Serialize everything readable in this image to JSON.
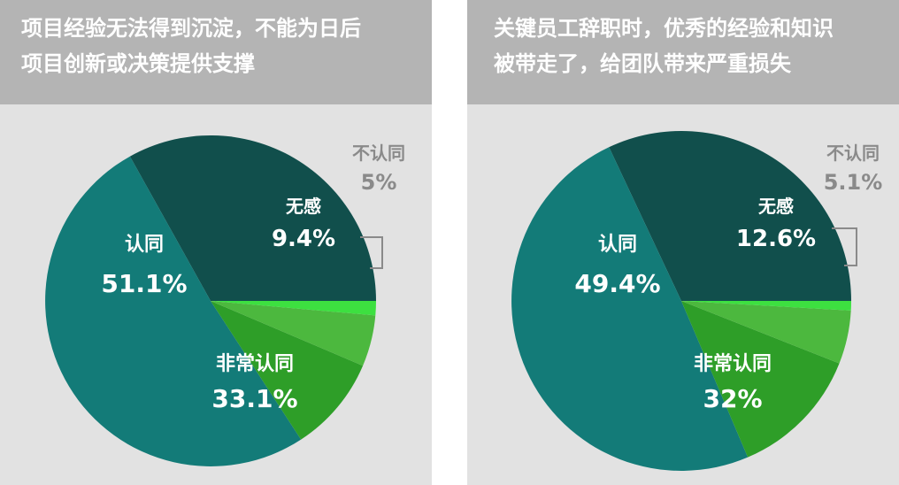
{
  "chart_data": [
    {
      "type": "pie",
      "title": "项目经验无法得到沉淀，不能为日后\n项目创新或决策提供支撑",
      "slices": [
        {
          "label": "非常认同",
          "value": 33.1,
          "value_label": "33.1%",
          "color": "#114f4c"
        },
        {
          "label": "认同",
          "value": 51.1,
          "value_label": "51.1%",
          "color": "#137b78"
        },
        {
          "label": "无感",
          "value": 9.4,
          "value_label": "9.4%",
          "color": "#2e9e28"
        },
        {
          "label": "不认同",
          "value": 5,
          "value_label": "5%",
          "color": "#4cb83e"
        },
        {
          "label": "",
          "value": 1.4,
          "value_label": "",
          "color": "#3de040"
        }
      ]
    },
    {
      "type": "pie",
      "title": "关键员工辞职时，优秀的经验和知识\n被带走了，给团队带来严重损失",
      "slices": [
        {
          "label": "非常认同",
          "value": 32,
          "value_label": "32%",
          "color": "#114f4c"
        },
        {
          "label": "认同",
          "value": 49.4,
          "value_label": "49.4%",
          "color": "#137b78"
        },
        {
          "label": "无感",
          "value": 12.6,
          "value_label": "12.6%",
          "color": "#2e9e28"
        },
        {
          "label": "不认同",
          "value": 5.1,
          "value_label": "5.1%",
          "color": "#4cb83e"
        },
        {
          "label": "",
          "value": 0.9,
          "value_label": "",
          "color": "#3de040"
        }
      ]
    }
  ]
}
